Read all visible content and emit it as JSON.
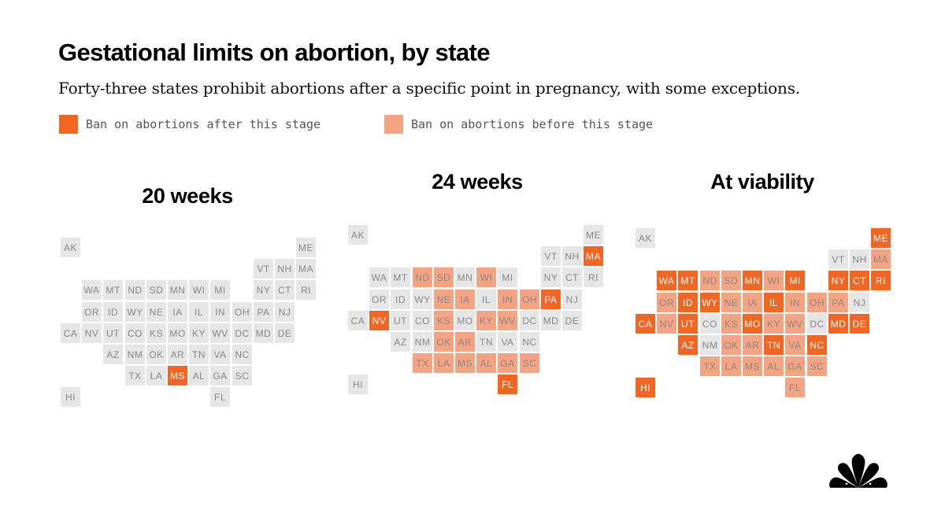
{
  "title": "Gestational limits on abortion, by state",
  "subtitle": "Forty-three states prohibit abortions after a specific point in pregnancy, with some exceptions.",
  "colors": {
    "after": "#f26522",
    "before": "#f4a482",
    "none": "#e6e6e6",
    "label_dark": "#888888",
    "label_light": "#ffffff"
  },
  "legend": [
    {
      "key": "after",
      "label": "Ban on abortions after this stage"
    },
    {
      "key": "before",
      "label": "Ban on abortions before this stage"
    }
  ],
  "chart_data": {
    "type": "table",
    "layout": "state tile grid map",
    "states": [
      {
        "code": "AK",
        "row": 0,
        "col": 0
      },
      {
        "code": "ME",
        "row": 0,
        "col": 11
      },
      {
        "code": "VT",
        "row": 1,
        "col": 9
      },
      {
        "code": "NH",
        "row": 1,
        "col": 10
      },
      {
        "code": "MA",
        "row": 1,
        "col": 11
      },
      {
        "code": "WA",
        "row": 2,
        "col": 1
      },
      {
        "code": "MT",
        "row": 2,
        "col": 2
      },
      {
        "code": "ND",
        "row": 2,
        "col": 3
      },
      {
        "code": "SD",
        "row": 2,
        "col": 4
      },
      {
        "code": "MN",
        "row": 2,
        "col": 5
      },
      {
        "code": "WI",
        "row": 2,
        "col": 6
      },
      {
        "code": "MI",
        "row": 2,
        "col": 7
      },
      {
        "code": "NY",
        "row": 2,
        "col": 9
      },
      {
        "code": "CT",
        "row": 2,
        "col": 10
      },
      {
        "code": "RI",
        "row": 2,
        "col": 11
      },
      {
        "code": "OR",
        "row": 3,
        "col": 1
      },
      {
        "code": "ID",
        "row": 3,
        "col": 2
      },
      {
        "code": "WY",
        "row": 3,
        "col": 3
      },
      {
        "code": "NE",
        "row": 3,
        "col": 4
      },
      {
        "code": "IA",
        "row": 3,
        "col": 5
      },
      {
        "code": "IL",
        "row": 3,
        "col": 6
      },
      {
        "code": "IN",
        "row": 3,
        "col": 7
      },
      {
        "code": "OH",
        "row": 3,
        "col": 8
      },
      {
        "code": "PA",
        "row": 3,
        "col": 9
      },
      {
        "code": "NJ",
        "row": 3,
        "col": 10
      },
      {
        "code": "CA",
        "row": 4,
        "col": 0
      },
      {
        "code": "NV",
        "row": 4,
        "col": 1
      },
      {
        "code": "UT",
        "row": 4,
        "col": 2
      },
      {
        "code": "CO",
        "row": 4,
        "col": 3
      },
      {
        "code": "KS",
        "row": 4,
        "col": 4
      },
      {
        "code": "MO",
        "row": 4,
        "col": 5
      },
      {
        "code": "KY",
        "row": 4,
        "col": 6
      },
      {
        "code": "WV",
        "row": 4,
        "col": 7
      },
      {
        "code": "DC",
        "row": 4,
        "col": 8
      },
      {
        "code": "MD",
        "row": 4,
        "col": 9
      },
      {
        "code": "DE",
        "row": 4,
        "col": 10
      },
      {
        "code": "AZ",
        "row": 5,
        "col": 2
      },
      {
        "code": "NM",
        "row": 5,
        "col": 3
      },
      {
        "code": "OK",
        "row": 5,
        "col": 4
      },
      {
        "code": "AR",
        "row": 5,
        "col": 5
      },
      {
        "code": "TN",
        "row": 5,
        "col": 6
      },
      {
        "code": "VA",
        "row": 5,
        "col": 7
      },
      {
        "code": "NC",
        "row": 5,
        "col": 8
      },
      {
        "code": "TX",
        "row": 6,
        "col": 3
      },
      {
        "code": "LA",
        "row": 6,
        "col": 4
      },
      {
        "code": "MS",
        "row": 6,
        "col": 5
      },
      {
        "code": "AL",
        "row": 6,
        "col": 6
      },
      {
        "code": "GA",
        "row": 6,
        "col": 7
      },
      {
        "code": "SC",
        "row": 6,
        "col": 8
      },
      {
        "code": "HI",
        "row": 7,
        "col": 0
      },
      {
        "code": "FL",
        "row": 7,
        "col": 7
      }
    ],
    "maps": [
      {
        "title": "20 weeks",
        "after": [
          "MS"
        ],
        "before": []
      },
      {
        "title": "24 weeks",
        "after": [
          "MA",
          "NV",
          "PA",
          "FL"
        ],
        "before": [
          "ND",
          "SD",
          "WI",
          "NE",
          "IA",
          "IN",
          "OH",
          "KS",
          "KY",
          "WV",
          "OK",
          "AR",
          "TX",
          "LA",
          "MS",
          "AL",
          "GA",
          "SC"
        ]
      },
      {
        "title": "At viability",
        "after": [
          "ME",
          "WA",
          "MT",
          "MN",
          "MI",
          "NY",
          "CT",
          "RI",
          "ID",
          "WY",
          "IL",
          "CA",
          "UT",
          "MO",
          "MD",
          "DE",
          "AZ",
          "TN",
          "NC",
          "HI"
        ],
        "before": [
          "MA",
          "ND",
          "SD",
          "WI",
          "OR",
          "NE",
          "IA",
          "IN",
          "OH",
          "PA",
          "NV",
          "KS",
          "KY",
          "WV",
          "OK",
          "AR",
          "VA",
          "TX",
          "LA",
          "MS",
          "AL",
          "GA",
          "SC",
          "FL"
        ]
      }
    ]
  }
}
